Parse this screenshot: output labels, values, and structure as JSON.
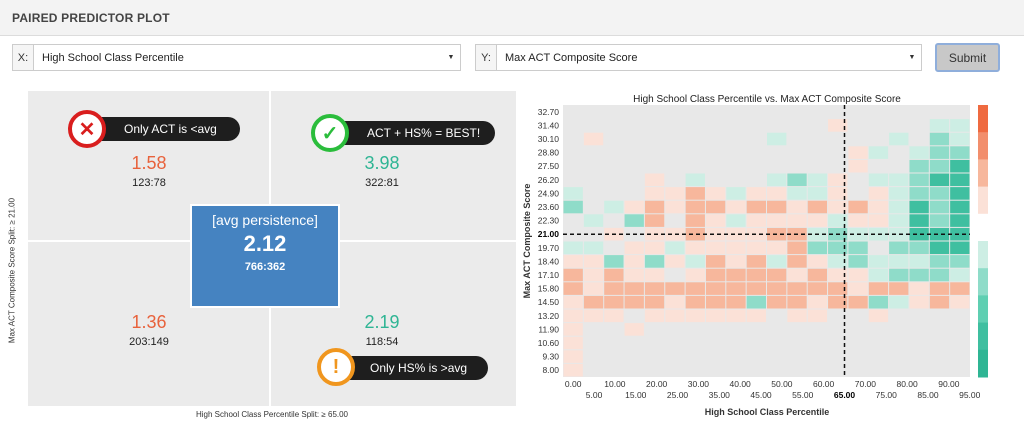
{
  "panel": {
    "title": "PAIRED PREDICTOR PLOT"
  },
  "controls": {
    "x_prefix": "X:",
    "x_value": "High School Class Percentile",
    "y_prefix": "Y:",
    "y_value": "Max ACT Composite Score",
    "submit_label": "Submit"
  },
  "quadrant": {
    "top_left": {
      "label": "Only ACT is <avg",
      "value": "1.58",
      "counts": "123:78",
      "icon": "x-icon"
    },
    "top_right": {
      "label": "ACT + HS% = BEST!",
      "value": "3.98",
      "counts": "322:81",
      "icon": "check-icon"
    },
    "bottom_left": {
      "value": "1.36",
      "counts": "203:149"
    },
    "bottom_right": {
      "label": "Only HS% is >avg",
      "value": "2.19",
      "counts": "118:54",
      "icon": "exclamation-icon"
    },
    "center": {
      "label": "[avg persistence]",
      "value": "2.12",
      "counts": "766:362"
    },
    "y_axis_label": "Max ACT Composite Score Split: ≥ 21.00",
    "x_axis_label": "High School Class Percentile Split: ≥ 65.00",
    "colors": {
      "low": "#e8623c",
      "high": "#2fb594",
      "center": "#4583c1"
    }
  },
  "chart_data": {
    "type": "heatmap",
    "title": "High School Class Percentile vs. Max ACT Composite Score",
    "xlabel": "High School Class Percentile",
    "ylabel": "Max ACT Composite Score",
    "x_ticks_upper": [
      "0.00",
      "10.00",
      "20.00",
      "30.00",
      "40.00",
      "50.00",
      "60.00",
      "70.00",
      "80.00",
      "90.00"
    ],
    "x_ticks_lower": [
      "5.00",
      "15.00",
      "25.00",
      "35.00",
      "45.00",
      "55.00",
      "65.00",
      "75.00",
      "85.00",
      "95.00"
    ],
    "x_split_label": "65.00",
    "y_ticks": [
      "32.70",
      "31.40",
      "30.10",
      "28.80",
      "27.50",
      "26.20",
      "24.90",
      "23.60",
      "22.30",
      "21.00",
      "19.70",
      "18.40",
      "17.10",
      "15.80",
      "14.50",
      "13.20",
      "11.90",
      "10.60",
      "9.30",
      "8.00"
    ],
    "y_split_label": "21.00",
    "x_split": 65.0,
    "y_split": 21.0,
    "xlim": [
      0,
      97.5
    ],
    "ylim": [
      8.0,
      33.35
    ],
    "cols": 20,
    "value_scale": "-3 (orange) to +3 (teal), 0 = none (gray)",
    "grid": [
      [
        0,
        0,
        0,
        0,
        0,
        0,
        0,
        0,
        0,
        0,
        0,
        0,
        0,
        0,
        0,
        0,
        0,
        0,
        0,
        0
      ],
      [
        0,
        0,
        0,
        0,
        0,
        0,
        0,
        0,
        0,
        0,
        0,
        0,
        0,
        -1,
        0,
        0,
        0,
        0,
        1,
        1
      ],
      [
        0,
        -1,
        0,
        0,
        0,
        0,
        0,
        0,
        0,
        0,
        1,
        0,
        0,
        0,
        0,
        0,
        1,
        0,
        2,
        1
      ],
      [
        0,
        0,
        0,
        0,
        0,
        0,
        0,
        0,
        0,
        0,
        0,
        0,
        0,
        0,
        -1,
        1,
        0,
        1,
        2,
        2
      ],
      [
        0,
        0,
        0,
        0,
        0,
        0,
        0,
        0,
        0,
        0,
        0,
        0,
        0,
        0,
        -1,
        0,
        0,
        2,
        2,
        3
      ],
      [
        0,
        0,
        0,
        0,
        -1,
        0,
        1,
        0,
        0,
        0,
        1,
        2,
        1,
        -1,
        0,
        1,
        1,
        2,
        3,
        3
      ],
      [
        1,
        0,
        0,
        0,
        -1,
        -1,
        -2,
        -1,
        1,
        -1,
        -1,
        1,
        1,
        -1,
        0,
        -1,
        1,
        2,
        2,
        3
      ],
      [
        2,
        0,
        1,
        -1,
        -2,
        -1,
        -2,
        -2,
        -1,
        -2,
        -2,
        -1,
        -2,
        -1,
        -2,
        -1,
        1,
        3,
        2,
        3
      ],
      [
        0,
        1,
        0,
        2,
        -2,
        0,
        -2,
        -1,
        1,
        -1,
        -1,
        -1,
        -1,
        1,
        -1,
        -1,
        1,
        3,
        2,
        3
      ],
      [
        0,
        0,
        -1,
        0,
        -1,
        -1,
        -2,
        -1,
        -1,
        -1,
        -2,
        -2,
        1,
        2,
        1,
        1,
        1,
        3,
        3,
        3
      ],
      [
        1,
        1,
        0,
        -1,
        -1,
        1,
        -1,
        -1,
        -1,
        -1,
        -1,
        -2,
        2,
        2,
        2,
        0,
        2,
        2,
        3,
        3
      ],
      [
        -1,
        -1,
        2,
        -1,
        2,
        -1,
        1,
        -2,
        -1,
        -2,
        1,
        -2,
        -1,
        1,
        2,
        1,
        1,
        1,
        2,
        2
      ],
      [
        -2,
        -1,
        -2,
        -1,
        -1,
        0,
        -1,
        -2,
        -2,
        -2,
        -2,
        -1,
        -2,
        -1,
        -1,
        1,
        2,
        2,
        2,
        1
      ],
      [
        -2,
        -1,
        -2,
        -2,
        -2,
        -2,
        -2,
        -2,
        -2,
        -2,
        -2,
        -2,
        -2,
        -2,
        -1,
        -2,
        -2,
        -1,
        -2,
        -2
      ],
      [
        -1,
        -2,
        -2,
        -2,
        -2,
        -1,
        -2,
        -2,
        -2,
        2,
        -2,
        -2,
        -1,
        -2,
        -2,
        2,
        1,
        -1,
        -2,
        -1
      ],
      [
        -1,
        -1,
        -1,
        0,
        -1,
        -1,
        -1,
        -1,
        -1,
        -1,
        0,
        -1,
        -1,
        0,
        0,
        -1,
        0,
        0,
        0,
        0
      ],
      [
        -1,
        0,
        0,
        -1,
        0,
        0,
        0,
        0,
        0,
        0,
        0,
        0,
        0,
        0,
        0,
        0,
        0,
        0,
        0,
        0
      ],
      [
        -1,
        0,
        0,
        0,
        0,
        0,
        0,
        0,
        0,
        0,
        0,
        0,
        0,
        0,
        0,
        0,
        0,
        0,
        0,
        0
      ],
      [
        -1,
        0,
        0,
        0,
        0,
        0,
        0,
        0,
        0,
        0,
        0,
        0,
        0,
        0,
        0,
        0,
        0,
        0,
        0,
        0
      ],
      [
        -1,
        0,
        0,
        0,
        0,
        0,
        0,
        0,
        0,
        0,
        0,
        0,
        0,
        0,
        0,
        0,
        0,
        0,
        0,
        0
      ]
    ],
    "legend": "vertical color scale, right side, orange (top) to teal (bottom)"
  }
}
